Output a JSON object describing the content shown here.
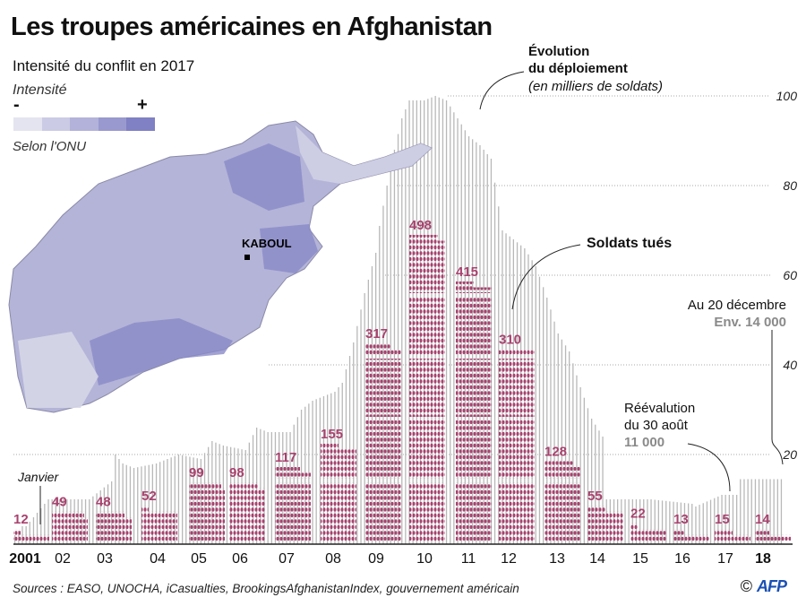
{
  "title": "Les troupes américaines en Afghanistan",
  "map": {
    "subtitle": "Intensité du conflit en 2017",
    "legend_label": "Intensité",
    "legend_min": "-",
    "legend_max": "+",
    "legend_colors": [
      "#e4e4f1",
      "#cbcbe5",
      "#b2b2da",
      "#9999cf",
      "#8080c4"
    ],
    "source": "Selon l'ONU",
    "city": "KABOUL"
  },
  "annotations": {
    "deployment_title": "Évolution",
    "deployment_title2": "du déploiement",
    "deployment_unit": "(en milliers de soldats)",
    "killed": "Soldats tués",
    "dec_label": "Au 20 décembre",
    "dec_value": "Env. 14 000",
    "aug_label1": "Réévalution",
    "aug_label2": "du 30 août",
    "aug_value": "11 000",
    "january": "Janvier"
  },
  "chart_data": {
    "type": "bar",
    "colors": {
      "troops": "#b8b8b8",
      "killed": "#a8426e",
      "annotation_value": "#8a8a8a"
    },
    "y_axis": {
      "ylim": [
        0,
        100
      ],
      "ticks": [
        20,
        40,
        60,
        80,
        100
      ]
    },
    "years": [
      "2001",
      "02",
      "03",
      "04",
      "05",
      "06",
      "07",
      "08",
      "09",
      "10",
      "11",
      "12",
      "13",
      "14",
      "15",
      "16",
      "17",
      "18"
    ],
    "troops_thousands": {
      "description_units": "thousands of soldiers, monthly",
      "points": [
        [
          "2001-10",
          2
        ],
        [
          "2001-11",
          3
        ],
        [
          "2001-12",
          4
        ],
        [
          "2002-01",
          4
        ],
        [
          "2002-03",
          6
        ],
        [
          "2002-05",
          8
        ],
        [
          "2002-07",
          10
        ],
        [
          "2002-12",
          10
        ],
        [
          "2003-06",
          10
        ],
        [
          "2003-09",
          12
        ],
        [
          "2003-12",
          14
        ],
        [
          "2004-01",
          20
        ],
        [
          "2004-03",
          18
        ],
        [
          "2004-06",
          17
        ],
        [
          "2004-12",
          18
        ],
        [
          "2005-03",
          19
        ],
        [
          "2005-06",
          20
        ],
        [
          "2005-12",
          19
        ],
        [
          "2006-03",
          23
        ],
        [
          "2006-06",
          22
        ],
        [
          "2006-12",
          21
        ],
        [
          "2007-03",
          26
        ],
        [
          "2007-06",
          25
        ],
        [
          "2007-12",
          25
        ],
        [
          "2008-03",
          30
        ],
        [
          "2008-06",
          32
        ],
        [
          "2008-12",
          34
        ],
        [
          "2009-02",
          36
        ],
        [
          "2009-05",
          45
        ],
        [
          "2009-08",
          56
        ],
        [
          "2009-11",
          65
        ],
        [
          "2009-12",
          71
        ],
        [
          "2010-02",
          80
        ],
        [
          "2010-04",
          88
        ],
        [
          "2010-06",
          95
        ],
        [
          "2010-08",
          99
        ],
        [
          "2010-12",
          99
        ],
        [
          "2011-03",
          100
        ],
        [
          "2011-06",
          99
        ],
        [
          "2011-09",
          95
        ],
        [
          "2011-12",
          91
        ],
        [
          "2012-03",
          89
        ],
        [
          "2012-06",
          86
        ],
        [
          "2012-09",
          70
        ],
        [
          "2012-12",
          68
        ],
        [
          "2013-03",
          66
        ],
        [
          "2013-06",
          62
        ],
        [
          "2013-09",
          55
        ],
        [
          "2013-12",
          47
        ],
        [
          "2014-03",
          43
        ],
        [
          "2014-06",
          35
        ],
        [
          "2014-09",
          28
        ],
        [
          "2014-12",
          24
        ],
        [
          "2015-01",
          10
        ],
        [
          "2015-12",
          10
        ],
        [
          "2016-01",
          10
        ],
        [
          "2016-12",
          9
        ],
        [
          "2017-01",
          8.4
        ],
        [
          "2017-08",
          11
        ],
        [
          "2017-12",
          11
        ],
        [
          "2018-01",
          14.5
        ],
        [
          "2018-12",
          14.5
        ]
      ]
    },
    "soldiers_killed": [
      12,
      49,
      48,
      52,
      99,
      98,
      117,
      155,
      317,
      498,
      415,
      310,
      128,
      55,
      22,
      13,
      15,
      14
    ]
  },
  "footer": {
    "sources": "Sources : EASO, UNOCHA, iCasualties, BrookingsAfghanistanIndex, gouvernement américain",
    "copyright": "©",
    "logo": "AFP"
  }
}
